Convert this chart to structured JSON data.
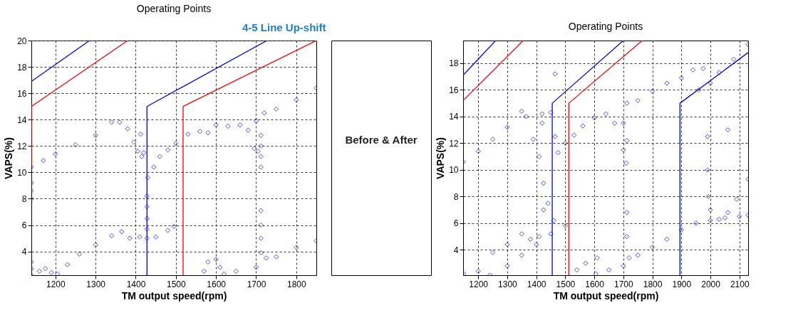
{
  "chart_data": [
    {
      "type": "line",
      "title": "Operating Points",
      "xlabel": "TM output speed(rpm)",
      "ylabel": "VAPS(%)",
      "annotations": [
        "4-5 Line Up-shift"
      ],
      "xlim": [
        1140,
        1850
      ],
      "ylim": [
        2.2,
        20
      ],
      "xticks": [
        1200,
        1300,
        1400,
        1500,
        1600,
        1700,
        1800
      ],
      "yticks": [
        4,
        6,
        8,
        10,
        12,
        14,
        16,
        18,
        20
      ],
      "grid": true,
      "series": [
        {
          "color": "#0000ff",
          "x": [
            1140,
            1285
          ],
          "values": [
            16.9,
            20
          ]
        },
        {
          "color": "#0000ff",
          "x": [
            1428,
            1428,
            1727
          ],
          "values": [
            2.2,
            15,
            20
          ]
        },
        {
          "color": "#ff0000",
          "x": [
            1140,
            1140,
            1380
          ],
          "values": [
            10.5,
            15,
            20
          ]
        },
        {
          "color": "#ff0000",
          "x": [
            1518,
            1518,
            1850
          ],
          "values": [
            2.2,
            15,
            20
          ]
        },
        {
          "type": "scatter",
          "marker": "diamond",
          "color": "#0000ff",
          "x": [
            1140,
            1170,
            1200,
            1250,
            1300,
            1340,
            1360,
            1380,
            1395,
            1405,
            1412,
            1415,
            1420,
            1430,
            1445,
            1460,
            1480,
            1500,
            1530,
            1560,
            1580,
            1600,
            1630,
            1660,
            1680,
            1695,
            1705,
            1700,
            1712,
            1712,
            1712,
            1712,
            1720,
            1750,
            1800,
            1850,
            1140,
            1140,
            1140,
            1140,
            1140,
            1140,
            1160,
            1175,
            1190,
            1205,
            1230,
            1260,
            1300,
            1340,
            1365,
            1385,
            1410,
            1428,
            1428,
            1428,
            1428,
            1428,
            1450,
            1480,
            1495,
            1570,
            1580,
            1600,
            1610,
            1620,
            1650,
            1700,
            1712,
            1712,
            1712,
            1712,
            1725,
            1750,
            1800,
            1850
          ],
          "values": [
            10.4,
            10.9,
            11.4,
            12.1,
            12.8,
            13.8,
            13.8,
            13.3,
            12.3,
            11.6,
            12.9,
            11.2,
            11.5,
            9.6,
            10.4,
            11.2,
            11.7,
            12.2,
            12.9,
            13.1,
            13.0,
            13.6,
            13.5,
            13.6,
            13.2,
            11.8,
            11.6,
            13.9,
            10.4,
            11.2,
            12.0,
            12.8,
            14.5,
            14.8,
            15.5,
            16.4,
            2.2,
            2.7,
            3.2,
            8.0,
            8.6,
            9.2,
            2.5,
            2.7,
            2.4,
            2.3,
            3.0,
            3.8,
            4.5,
            5.2,
            5.5,
            5.0,
            5.1,
            5.0,
            5.7,
            6.5,
            7.4,
            8.2,
            5.1,
            5.6,
            5.9,
            2.5,
            3.2,
            3.4,
            2.8,
            2.3,
            2.5,
            2.8,
            3.9,
            5.0,
            6.0,
            7.1,
            3.5,
            3.6,
            4.3,
            4.8
          ]
        }
      ]
    },
    {
      "type": "line",
      "title": "Operating Points",
      "xlabel": "TM output speed(rpm)",
      "ylabel": "VAPS(%)",
      "annotations": [
        "Before & After"
      ],
      "xlim": [
        1148,
        2130
      ],
      "ylim": [
        2.1,
        19.7
      ],
      "xticks": [
        1200,
        1300,
        1400,
        1500,
        1600,
        1700,
        1800,
        1900,
        2000,
        2100
      ],
      "yticks": [
        4,
        6,
        8,
        10,
        12,
        14,
        16,
        18
      ],
      "grid": true,
      "series": [
        {
          "color": "#0000ff",
          "x": [
            1148,
            1260
          ],
          "values": [
            17.1,
            19.7
          ]
        },
        {
          "color": "#0000ff",
          "x": [
            1455,
            1455,
            1700
          ],
          "values": [
            2.1,
            15,
            19.7
          ]
        },
        {
          "color": "#0000ff",
          "x": [
            1895,
            1895,
            2130
          ],
          "values": [
            2.1,
            15,
            18.8
          ]
        },
        {
          "color": "#ff0000",
          "x": [
            1148,
            1355
          ],
          "values": [
            15.2,
            19.7
          ]
        },
        {
          "color": "#ff0000",
          "x": [
            1512,
            1512,
            1765
          ],
          "values": [
            2.1,
            15,
            19.7
          ]
        },
        {
          "type": "scatter",
          "marker": "diamond",
          "color": "#0000ff",
          "x": [
            1148,
            1200,
            1250,
            1300,
            1350,
            1365,
            1390,
            1410,
            1420,
            1420,
            1450,
            1465,
            1475,
            1500,
            1530,
            1560,
            1600,
            1640,
            1670,
            1700,
            1710,
            1700,
            1712,
            1712,
            1750,
            1800,
            1850,
            1900,
            1940,
            1960,
            1975,
            2000,
            2030,
            2080,
            2130,
            2060,
            1465,
            1990,
            1990,
            1993,
            2000,
            2030,
            1150,
            1200,
            1250,
            1300,
            1350,
            1380,
            1410,
            1425,
            1425,
            1440,
            1460,
            1240,
            1300,
            1350,
            1400,
            1450,
            1500,
            1540,
            1570,
            1610,
            1605,
            1650,
            1700,
            1712,
            1712,
            1720,
            1750,
            1800,
            1850,
            1900,
            1950,
            2000,
            2050,
            2100,
            2130,
            2060,
            2090,
            2130
          ],
          "values": [
            10.6,
            11.4,
            12.3,
            13.2,
            14.4,
            14.0,
            12.3,
            11.0,
            13.5,
            14.2,
            14.3,
            12.5,
            11.3,
            12.0,
            12.6,
            13.3,
            13.9,
            14.2,
            13.5,
            11.5,
            10.5,
            13.5,
            12.2,
            15.0,
            15.2,
            15.9,
            16.5,
            16.9,
            17.5,
            16.0,
            17.6,
            16.5,
            17.3,
            18.3,
            19.4,
            13.0,
            17.2,
            12.5,
            10.0,
            8.0,
            7.0,
            6.3,
            2.2,
            2.4,
            3.8,
            4.4,
            5.2,
            4.8,
            5.0,
            9.0,
            7.0,
            7.5,
            6.2,
            2.1,
            2.8,
            3.6,
            4.4,
            5.2,
            5.8,
            2.5,
            3.0,
            3.4,
            2.2,
            2.5,
            2.8,
            6.8,
            5.0,
            3.4,
            3.6,
            4.2,
            4.8,
            5.5,
            6.0,
            6.2,
            6.4,
            6.5,
            6.6,
            6.8,
            7.8,
            9.3
          ]
        }
      ]
    }
  ]
}
